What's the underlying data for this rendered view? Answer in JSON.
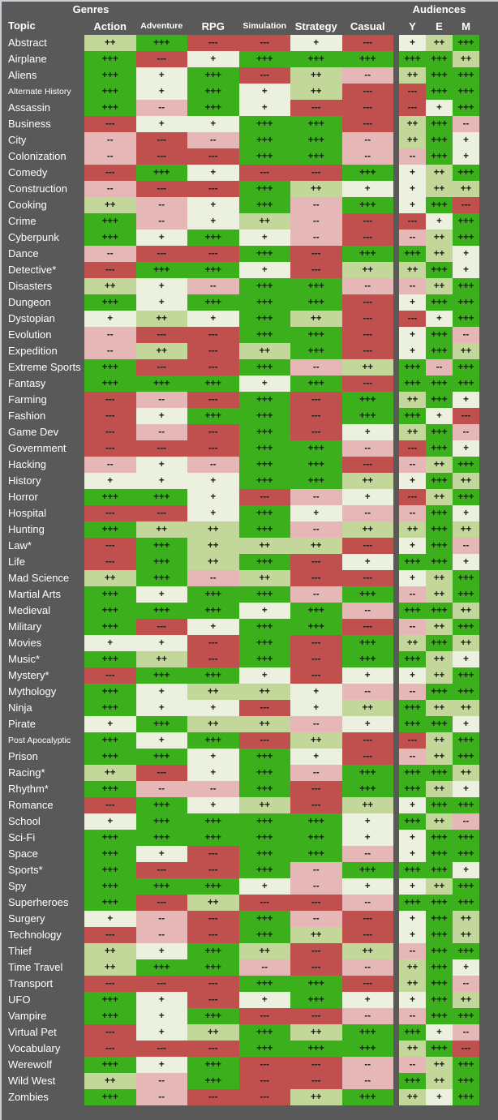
{
  "header": {
    "genres_label": "Genres",
    "audiences_label": "Audiences",
    "topic_label": "Topic",
    "genre_columns": [
      "Action",
      "Adventure",
      "RPG",
      "Simulation",
      "Strategy",
      "Casual"
    ],
    "audience_columns": [
      "Y",
      "E",
      "M"
    ]
  },
  "colors": {
    "+++": "#3CB01C",
    "++": "#C4D79B",
    "+": "#EBF1DE",
    "--": "#E5B8B7",
    "---": "#C0504D",
    "background": "#595959",
    "border": "#C9CFD6",
    "header_text": "#FFFFFF",
    "cell_text": "#1A1A1A"
  },
  "rows": [
    {
      "topic": "Abstract",
      "ratings": [
        "++",
        "+++",
        "---",
        "---",
        "+",
        "---",
        "+",
        "++",
        "+++"
      ]
    },
    {
      "topic": "Airplane",
      "ratings": [
        "+++",
        "---",
        "+",
        "+++",
        "+++",
        "+++",
        "+++",
        "+++",
        "++"
      ]
    },
    {
      "topic": "Aliens",
      "ratings": [
        "+++",
        "+",
        "+++",
        "---",
        "++",
        "--",
        "++",
        "+++",
        "+++"
      ]
    },
    {
      "topic": "Alternate History",
      "ratings": [
        "+++",
        "+",
        "+++",
        "+",
        "++",
        "---",
        "---",
        "+++",
        "+++"
      ]
    },
    {
      "topic": "Assassin",
      "ratings": [
        "+++",
        "--",
        "+++",
        "+",
        "---",
        "---",
        "---",
        "+",
        "+++"
      ]
    },
    {
      "topic": "Business",
      "ratings": [
        "---",
        "+",
        "+",
        "+++",
        "+++",
        "---",
        "++",
        "+++",
        "--"
      ]
    },
    {
      "topic": "City",
      "ratings": [
        "--",
        "---",
        "--",
        "+++",
        "+++",
        "--",
        "++",
        "+++",
        "+"
      ]
    },
    {
      "topic": "Colonization",
      "ratings": [
        "--",
        "---",
        "---",
        "+++",
        "+++",
        "--",
        "--",
        "+++",
        "+"
      ]
    },
    {
      "topic": "Comedy",
      "ratings": [
        "---",
        "+++",
        "+",
        "---",
        "---",
        "+++",
        "+",
        "++",
        "+++"
      ]
    },
    {
      "topic": "Construction",
      "ratings": [
        "--",
        "---",
        "---",
        "+++",
        "++",
        "+",
        "+",
        "++",
        "++"
      ]
    },
    {
      "topic": "Cooking",
      "ratings": [
        "++",
        "--",
        "+",
        "+++",
        "--",
        "+++",
        "+",
        "+++",
        "---"
      ]
    },
    {
      "topic": "Crime",
      "ratings": [
        "+++",
        "--",
        "+",
        "++",
        "--",
        "---",
        "---",
        "+",
        "+++"
      ]
    },
    {
      "topic": "Cyberpunk",
      "ratings": [
        "+++",
        "+",
        "+++",
        "+",
        "--",
        "---",
        "--",
        "++",
        "+++"
      ]
    },
    {
      "topic": "Dance",
      "ratings": [
        "--",
        "---",
        "---",
        "+++",
        "---",
        "+++",
        "+++",
        "++",
        "+"
      ]
    },
    {
      "topic": "Detective*",
      "ratings": [
        "---",
        "+++",
        "+++",
        "+",
        "---",
        "++",
        "++",
        "+++",
        "+"
      ]
    },
    {
      "topic": "Disasters",
      "ratings": [
        "++",
        "+",
        "--",
        "+++",
        "+++",
        "--",
        "--",
        "++",
        "+++"
      ]
    },
    {
      "topic": "Dungeon",
      "ratings": [
        "+++",
        "+",
        "+++",
        "+++",
        "+++",
        "---",
        "+",
        "+++",
        "+++"
      ]
    },
    {
      "topic": "Dystopian",
      "ratings": [
        "+",
        "++",
        "+",
        "+++",
        "++",
        "---",
        "---",
        "+",
        "+++"
      ]
    },
    {
      "topic": "Evolution",
      "ratings": [
        "--",
        "---",
        "---",
        "+++",
        "+++",
        "---",
        "+",
        "+++",
        "--"
      ]
    },
    {
      "topic": "Expedition",
      "ratings": [
        "--",
        "++",
        "---",
        "++",
        "+++",
        "---",
        "+",
        "+++",
        "++"
      ]
    },
    {
      "topic": "Extreme Sports",
      "ratings": [
        "+++",
        "---",
        "---",
        "+++",
        "--",
        "++",
        "+++",
        "--",
        "+++"
      ]
    },
    {
      "topic": "Fantasy",
      "ratings": [
        "+++",
        "+++",
        "+++",
        "+",
        "+++",
        "---",
        "+++",
        "+++",
        "+++"
      ]
    },
    {
      "topic": "Farming",
      "ratings": [
        "---",
        "--",
        "---",
        "+++",
        "---",
        "+++",
        "++",
        "+++",
        "+"
      ]
    },
    {
      "topic": "Fashion",
      "ratings": [
        "---",
        "+",
        "+++",
        "+++",
        "---",
        "+++",
        "+++",
        "+",
        "---"
      ]
    },
    {
      "topic": "Game Dev",
      "ratings": [
        "---",
        "--",
        "---",
        "+++",
        "---",
        "+",
        "++",
        "+++",
        "--"
      ]
    },
    {
      "topic": "Government",
      "ratings": [
        "---",
        "---",
        "---",
        "+++",
        "+++",
        "--",
        "---",
        "+++",
        "+"
      ]
    },
    {
      "topic": "Hacking",
      "ratings": [
        "--",
        "+",
        "--",
        "+++",
        "+++",
        "---",
        "--",
        "++",
        "+++"
      ]
    },
    {
      "topic": "History",
      "ratings": [
        "+",
        "+",
        "+",
        "+++",
        "+++",
        "++",
        "+",
        "+++",
        "++"
      ]
    },
    {
      "topic": "Horror",
      "ratings": [
        "+++",
        "+++",
        "+",
        "---",
        "--",
        "+",
        "---",
        "++",
        "+++"
      ]
    },
    {
      "topic": "Hospital",
      "ratings": [
        "---",
        "---",
        "+",
        "+++",
        "+",
        "--",
        "--",
        "+++",
        "+"
      ]
    },
    {
      "topic": "Hunting",
      "ratings": [
        "+++",
        "++",
        "++",
        "+++",
        "--",
        "++",
        "++",
        "+++",
        "++"
      ]
    },
    {
      "topic": "Law*",
      "ratings": [
        "---",
        "+++",
        "++",
        "++",
        "++",
        "---",
        "+",
        "+++",
        "--"
      ]
    },
    {
      "topic": "Life",
      "ratings": [
        "---",
        "+++",
        "++",
        "+++",
        "---",
        "+",
        "+++",
        "+++",
        "+"
      ]
    },
    {
      "topic": "Mad Science",
      "ratings": [
        "++",
        "+++",
        "--",
        "++",
        "---",
        "---",
        "+",
        "++",
        "+++"
      ]
    },
    {
      "topic": "Martial Arts",
      "ratings": [
        "+++",
        "+",
        "+++",
        "+++",
        "--",
        "+++",
        "--",
        "++",
        "+++"
      ]
    },
    {
      "topic": "Medieval",
      "ratings": [
        "+++",
        "+++",
        "+++",
        "+",
        "+++",
        "--",
        "+++",
        "+++",
        "++"
      ]
    },
    {
      "topic": "Military",
      "ratings": [
        "+++",
        "---",
        "+",
        "+++",
        "+++",
        "---",
        "--",
        "++",
        "+++"
      ]
    },
    {
      "topic": "Movies",
      "ratings": [
        "+",
        "+",
        "---",
        "+++",
        "---",
        "+++",
        "++",
        "+++",
        "++"
      ]
    },
    {
      "topic": "Music*",
      "ratings": [
        "+++",
        "++",
        "---",
        "+++",
        "---",
        "+++",
        "+++",
        "++",
        "+"
      ]
    },
    {
      "topic": "Mystery*",
      "ratings": [
        "---",
        "+++",
        "+++",
        "+",
        "---",
        "+",
        "+",
        "++",
        "+++"
      ]
    },
    {
      "topic": "Mythology",
      "ratings": [
        "+++",
        "+",
        "++",
        "++",
        "+",
        "--",
        "--",
        "+++",
        "+++"
      ]
    },
    {
      "topic": "Ninja",
      "ratings": [
        "+++",
        "+",
        "+",
        "---",
        "+",
        "++",
        "+++",
        "++",
        "++"
      ]
    },
    {
      "topic": "Pirate",
      "ratings": [
        "+",
        "+++",
        "++",
        "++",
        "--",
        "+",
        "+++",
        "+++",
        "+"
      ]
    },
    {
      "topic": "Post Apocalyptic",
      "ratings": [
        "+++",
        "+",
        "+++",
        "---",
        "++",
        "---",
        "---",
        "++",
        "+++"
      ]
    },
    {
      "topic": "Prison",
      "ratings": [
        "+++",
        "+++",
        "+",
        "+++",
        "+",
        "---",
        "--",
        "++",
        "+++"
      ]
    },
    {
      "topic": "Racing*",
      "ratings": [
        "++",
        "---",
        "+",
        "+++",
        "--",
        "+++",
        "+++",
        "+++",
        "++"
      ]
    },
    {
      "topic": "Rhythm*",
      "ratings": [
        "+++",
        "--",
        "--",
        "+++",
        "---",
        "+++",
        "+++",
        "++",
        "+"
      ]
    },
    {
      "topic": "Romance",
      "ratings": [
        "---",
        "+++",
        "+",
        "++",
        "---",
        "++",
        "+",
        "+++",
        "+++"
      ]
    },
    {
      "topic": "School",
      "ratings": [
        "+",
        "+++",
        "+++",
        "+++",
        "+++",
        "+",
        "+++",
        "++",
        "--"
      ]
    },
    {
      "topic": "Sci-Fi",
      "ratings": [
        "+++",
        "+++",
        "+++",
        "+++",
        "+++",
        "+",
        "+",
        "+++",
        "+++"
      ]
    },
    {
      "topic": "Space",
      "ratings": [
        "+++",
        "+",
        "---",
        "+++",
        "+++",
        "--",
        "+",
        "+++",
        "+++"
      ]
    },
    {
      "topic": "Sports*",
      "ratings": [
        "+++",
        "---",
        "---",
        "+++",
        "--",
        "+++",
        "+++",
        "+++",
        "+"
      ]
    },
    {
      "topic": "Spy",
      "ratings": [
        "+++",
        "+++",
        "+++",
        "+",
        "--",
        "+",
        "+",
        "++",
        "+++"
      ]
    },
    {
      "topic": "Superheroes",
      "ratings": [
        "+++",
        "---",
        "++",
        "---",
        "---",
        "--",
        "+++",
        "+++",
        "+++"
      ]
    },
    {
      "topic": "Surgery",
      "ratings": [
        "+",
        "--",
        "---",
        "+++",
        "--",
        "---",
        "+",
        "+++",
        "++"
      ]
    },
    {
      "topic": "Technology",
      "ratings": [
        "---",
        "--",
        "---",
        "+++",
        "++",
        "---",
        "+",
        "+++",
        "++"
      ]
    },
    {
      "topic": "Thief",
      "ratings": [
        "++",
        "+",
        "+++",
        "++",
        "---",
        "++",
        "--",
        "+++",
        "+++"
      ]
    },
    {
      "topic": "Time Travel",
      "ratings": [
        "++",
        "+++",
        "+++",
        "--",
        "---",
        "--",
        "++",
        "+++",
        "+"
      ]
    },
    {
      "topic": "Transport",
      "ratings": [
        "---",
        "---",
        "---",
        "+++",
        "+++",
        "---",
        "++",
        "+++",
        "--"
      ]
    },
    {
      "topic": "UFO",
      "ratings": [
        "+++",
        "+",
        "---",
        "+",
        "+++",
        "+",
        "+",
        "+++",
        "++"
      ]
    },
    {
      "topic": "Vampire",
      "ratings": [
        "+++",
        "+",
        "+++",
        "---",
        "---",
        "--",
        "--",
        "+++",
        "+++"
      ]
    },
    {
      "topic": "Virtual Pet",
      "ratings": [
        "---",
        "+",
        "++",
        "+++",
        "++",
        "+++",
        "+++",
        "+",
        "--"
      ]
    },
    {
      "topic": "Vocabulary",
      "ratings": [
        "---",
        "---",
        "---",
        "+++",
        "+++",
        "+++",
        "++",
        "+++",
        "---"
      ]
    },
    {
      "topic": "Werewolf",
      "ratings": [
        "+++",
        "+",
        "+++",
        "---",
        "---",
        "--",
        "--",
        "++",
        "+++"
      ]
    },
    {
      "topic": "Wild West",
      "ratings": [
        "++",
        "--",
        "+++",
        "---",
        "---",
        "--",
        "+++",
        "++",
        "+++"
      ]
    },
    {
      "topic": "Zombies",
      "ratings": [
        "+++",
        "--",
        "---",
        "---",
        "++",
        "+++",
        "++",
        "+",
        "+++"
      ]
    }
  ]
}
